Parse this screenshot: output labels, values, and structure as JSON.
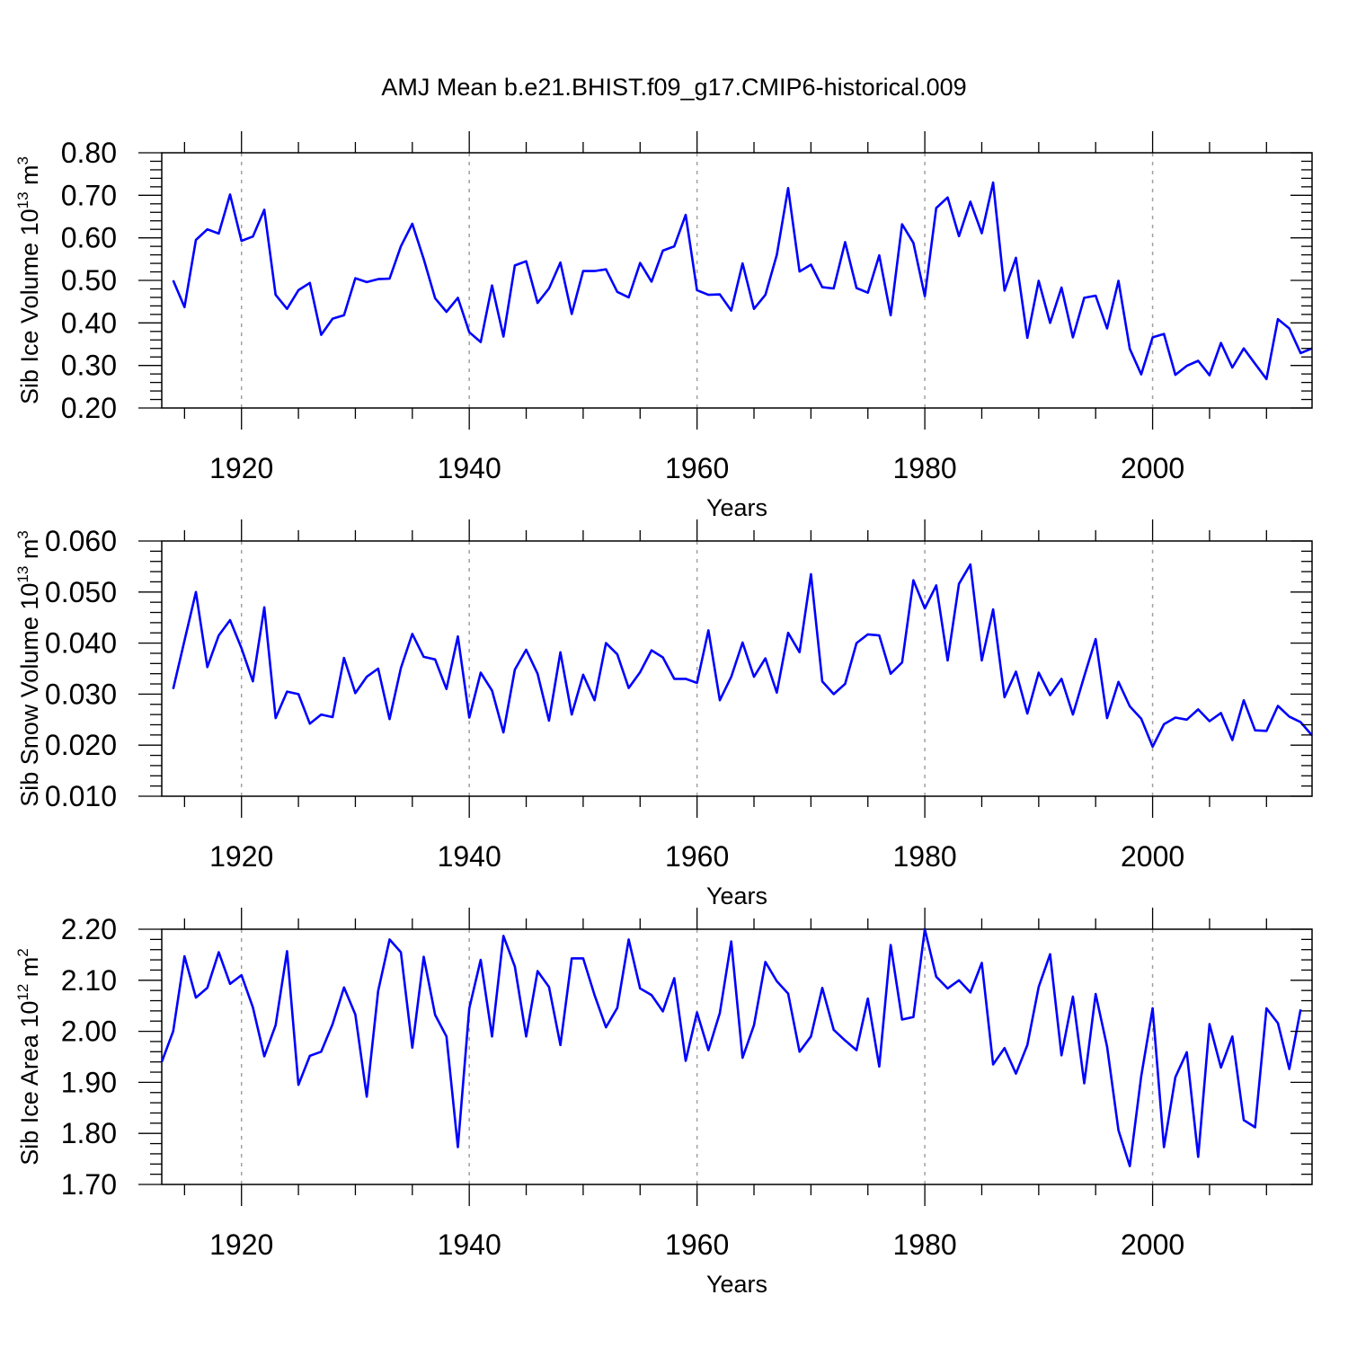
{
  "title": "AMJ Mean b.e21.BHIST.f09_g17.CMIP6-historical.009",
  "colors": {
    "line": "#0000ff",
    "grid": "#a0a0a0",
    "axis": "#000000"
  },
  "chart_data": [
    {
      "type": "line",
      "xlabel": "Years",
      "ylabel_prefix": "Sib Ice Volume 10",
      "ylabel_exp": "13",
      "ylabel_unit": " m",
      "ylabel_unit_exp": "3",
      "xlim": [
        1913,
        2014
      ],
      "ylim": [
        0.2,
        0.8
      ],
      "xticks": [
        1920,
        1940,
        1960,
        1980,
        2000
      ],
      "xtick_labels": [
        "1920",
        "1940",
        "1960",
        "1980",
        "2000"
      ],
      "yticks": [
        0.2,
        0.3,
        0.4,
        0.5,
        0.6,
        0.7,
        0.8
      ],
      "ytick_labels": [
        "0.20",
        "0.30",
        "0.40",
        "0.50",
        "0.60",
        "0.70",
        "0.80"
      ],
      "grid": "vertical dashed at x ticks",
      "x_start": 1914,
      "values": [
        0.5,
        0.437,
        0.595,
        0.62,
        0.61,
        0.702,
        0.593,
        0.603,
        0.666,
        0.466,
        0.433,
        0.477,
        0.494,
        0.372,
        0.41,
        0.418,
        0.505,
        0.496,
        0.503,
        0.504,
        0.58,
        0.633,
        0.55,
        0.458,
        0.426,
        0.459,
        0.378,
        0.355,
        0.488,
        0.368,
        0.535,
        0.545,
        0.447,
        0.481,
        0.542,
        0.421,
        0.522,
        0.522,
        0.526,
        0.473,
        0.46,
        0.541,
        0.497,
        0.57,
        0.58,
        0.654,
        0.477,
        0.466,
        0.467,
        0.429,
        0.54,
        0.433,
        0.466,
        0.56,
        0.717,
        0.521,
        0.537,
        0.484,
        0.481,
        0.59,
        0.482,
        0.471,
        0.559,
        0.418,
        0.632,
        0.588,
        0.463,
        0.67,
        0.695,
        0.604,
        0.685,
        0.611,
        0.73,
        0.476,
        0.553,
        0.365,
        0.499,
        0.4,
        0.483,
        0.366,
        0.459,
        0.464,
        0.387,
        0.499,
        0.339,
        0.279,
        0.366,
        0.374,
        0.278,
        0.299,
        0.311,
        0.277,
        0.353,
        0.295,
        0.34,
        0.304,
        0.268,
        0.409,
        0.387,
        0.329,
        0.34
      ]
    },
    {
      "type": "line",
      "xlabel": "Years",
      "ylabel_prefix": "Sib Snow Volume 10",
      "ylabel_exp": "13",
      "ylabel_unit": " m",
      "ylabel_unit_exp": "3",
      "xlim": [
        1913,
        2014
      ],
      "ylim": [
        0.01,
        0.06
      ],
      "xticks": [
        1920,
        1940,
        1960,
        1980,
        2000
      ],
      "xtick_labels": [
        "1920",
        "1940",
        "1960",
        "1980",
        "2000"
      ],
      "yticks": [
        0.01,
        0.02,
        0.03,
        0.04,
        0.05,
        0.06
      ],
      "ytick_labels": [
        "0.010",
        "0.020",
        "0.030",
        "0.040",
        "0.050",
        "0.060"
      ],
      "grid": "vertical dashed at x ticks",
      "x_start": 1914,
      "values": [
        0.031,
        0.0405,
        0.05,
        0.0353,
        0.0415,
        0.0445,
        0.039,
        0.0325,
        0.047,
        0.0253,
        0.0305,
        0.03,
        0.0242,
        0.026,
        0.0255,
        0.0371,
        0.0302,
        0.0334,
        0.035,
        0.0251,
        0.0351,
        0.0418,
        0.0373,
        0.0368,
        0.031,
        0.0413,
        0.0254,
        0.0342,
        0.0307,
        0.0225,
        0.0348,
        0.0387,
        0.034,
        0.0248,
        0.0382,
        0.026,
        0.0338,
        0.0288,
        0.04,
        0.0378,
        0.0312,
        0.0343,
        0.0386,
        0.0372,
        0.033,
        0.033,
        0.0322,
        0.0425,
        0.0288,
        0.0334,
        0.0401,
        0.0334,
        0.037,
        0.0303,
        0.042,
        0.0382,
        0.0535,
        0.0325,
        0.03,
        0.032,
        0.04,
        0.0417,
        0.0415,
        0.034,
        0.0362,
        0.0523,
        0.0468,
        0.0513,
        0.0366,
        0.0516,
        0.0554,
        0.0366,
        0.0466,
        0.0294,
        0.0344,
        0.0262,
        0.0342,
        0.0298,
        0.033,
        0.026,
        0.0335,
        0.0408,
        0.0253,
        0.0324,
        0.0276,
        0.0252,
        0.0197,
        0.0241,
        0.0254,
        0.025,
        0.027,
        0.0247,
        0.0263,
        0.021,
        0.0288,
        0.0229,
        0.0228,
        0.0277,
        0.0256,
        0.0245,
        0.0219
      ]
    },
    {
      "type": "line",
      "xlabel": "Years",
      "ylabel_prefix": "Sib Ice Area 10",
      "ylabel_exp": "12",
      "ylabel_unit": " m",
      "ylabel_unit_exp": "2",
      "xlim": [
        1913,
        2014
      ],
      "ylim": [
        1.7,
        2.2
      ],
      "xticks": [
        1920,
        1940,
        1960,
        1980,
        2000
      ],
      "xtick_labels": [
        "1920",
        "1940",
        "1960",
        "1980",
        "2000"
      ],
      "yticks": [
        1.7,
        1.8,
        1.9,
        2.0,
        2.1,
        2.2
      ],
      "ytick_labels": [
        "1.70",
        "1.80",
        "1.90",
        "2.00",
        "2.10",
        "2.20"
      ],
      "grid": "vertical dashed at x ticks",
      "x_start": 1913,
      "values": [
        1.94,
        2.0,
        2.147,
        2.066,
        2.085,
        2.155,
        2.093,
        2.11,
        2.047,
        1.951,
        2.012,
        2.157,
        1.895,
        1.952,
        1.96,
        2.014,
        2.086,
        2.033,
        1.872,
        2.079,
        2.18,
        2.155,
        1.968,
        2.146,
        2.032,
        1.99,
        1.773,
        2.045,
        2.14,
        1.99,
        2.187,
        2.127,
        1.99,
        2.118,
        2.087,
        1.973,
        2.143,
        2.143,
        2.071,
        2.008,
        2.046,
        2.18,
        2.084,
        2.071,
        2.039,
        2.104,
        1.942,
        2.037,
        1.963,
        2.036,
        2.176,
        1.948,
        2.012,
        2.136,
        2.098,
        2.074,
        1.96,
        1.99,
        2.085,
        2.003,
        1.982,
        1.963,
        2.064,
        1.931,
        2.169,
        2.023,
        2.028,
        2.2,
        2.107,
        2.084,
        2.1,
        2.076,
        2.134,
        1.935,
        1.967,
        1.917,
        1.973,
        2.087,
        2.151,
        1.953,
        2.068,
        1.898,
        2.073,
        1.97,
        1.806,
        1.736,
        1.912,
        2.045,
        1.773,
        1.91,
        1.959,
        1.754,
        2.014,
        1.929,
        1.99,
        1.826,
        1.812,
        2.045,
        2.016,
        1.926,
        2.043
      ]
    }
  ]
}
